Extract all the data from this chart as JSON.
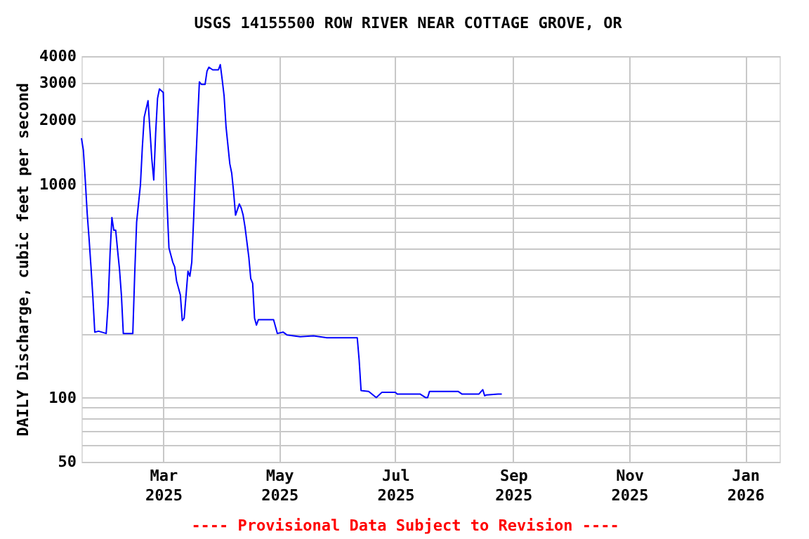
{
  "chart_data": {
    "type": "line",
    "title": "USGS 14155500 ROW RIVER NEAR COTTAGE GROVE, OR",
    "ylabel": "DAILY Discharge, cubic feet per second",
    "annotations": [
      "---- Provisional Data Subject to Revision ----"
    ],
    "x": [
      "2025-01-17",
      "2025-01-18",
      "2025-01-19",
      "2025-01-20",
      "2025-01-21",
      "2025-01-22",
      "2025-01-23",
      "2025-01-24",
      "2025-01-26",
      "2025-01-30",
      "2025-01-31",
      "2025-02-01",
      "2025-02-02",
      "2025-02-03",
      "2025-02-04",
      "2025-02-05",
      "2025-02-06",
      "2025-02-07",
      "2025-02-08",
      "2025-02-13",
      "2025-02-14",
      "2025-02-15",
      "2025-02-17",
      "2025-02-18",
      "2025-02-19",
      "2025-02-21",
      "2025-02-23",
      "2025-02-24",
      "2025-02-25",
      "2025-02-26",
      "2025-02-27",
      "2025-03-01",
      "2025-03-02",
      "2025-03-03",
      "2025-03-04",
      "2025-03-06",
      "2025-03-07",
      "2025-03-08",
      "2025-03-10",
      "2025-03-11",
      "2025-03-12",
      "2025-03-13",
      "2025-03-14",
      "2025-03-15",
      "2025-03-16",
      "2025-03-17",
      "2025-03-18",
      "2025-03-19",
      "2025-03-20",
      "2025-03-21",
      "2025-03-23",
      "2025-03-24",
      "2025-03-25",
      "2025-03-27",
      "2025-03-30",
      "2025-03-31",
      "2025-04-01",
      "2025-04-02",
      "2025-04-03",
      "2025-04-05",
      "2025-04-06",
      "2025-04-07",
      "2025-04-08",
      "2025-04-10",
      "2025-04-11",
      "2025-04-12",
      "2025-04-13",
      "2025-04-15",
      "2025-04-16",
      "2025-04-17",
      "2025-04-18",
      "2025-04-19",
      "2025-04-20",
      "2025-04-28",
      "2025-04-30",
      "2025-05-03",
      "2025-05-05",
      "2025-05-12",
      "2025-05-19",
      "2025-05-26",
      "2025-06-11",
      "2025-06-12",
      "2025-06-13",
      "2025-06-17",
      "2025-06-21",
      "2025-06-24",
      "2025-07-01",
      "2025-07-02",
      "2025-07-14",
      "2025-07-17",
      "2025-07-18",
      "2025-07-19",
      "2025-08-03",
      "2025-08-05",
      "2025-08-14",
      "2025-08-16",
      "2025-08-17",
      "2025-08-18",
      "2025-08-24",
      "2025-08-26"
    ],
    "series": [
      {
        "color": "#0000ff",
        "values": [
          1650,
          1450,
          1050,
          735,
          557,
          411,
          296,
          203,
          205,
          200,
          274,
          467,
          700,
          610,
          610,
          491,
          400,
          303,
          200,
          200,
          381,
          665,
          995,
          1490,
          2070,
          2470,
          1315,
          1050,
          1735,
          2535,
          2805,
          2700,
          1450,
          813,
          504,
          432,
          411,
          353,
          303,
          230,
          236,
          303,
          392,
          371,
          432,
          699,
          1188,
          1920,
          3030,
          2950,
          2950,
          3400,
          3550,
          3450,
          3450,
          3650,
          3100,
          2600,
          1870,
          1250,
          1130,
          922,
          718,
          810,
          775,
          718,
          631,
          455,
          362,
          344,
          236,
          219,
          232,
          232,
          200,
          203,
          197,
          193,
          195,
          191,
          191,
          150,
          108,
          107,
          100,
          106,
          106,
          104,
          104,
          100,
          100,
          107,
          107,
          104,
          104,
          109,
          102,
          103,
          104,
          104
        ]
      }
    ],
    "xlim": [
      "2025-01-17",
      "2026-01-19"
    ],
    "xticks": [
      {
        "value": "2025-03-01",
        "label": "Mar 2025"
      },
      {
        "value": "2025-05-01",
        "label": "May 2025"
      },
      {
        "value": "2025-07-01",
        "label": "Jul 2025"
      },
      {
        "value": "2025-09-01",
        "label": "Sep 2025"
      },
      {
        "value": "2025-11-01",
        "label": "Nov 2025"
      },
      {
        "value": "2026-01-01",
        "label": "Jan 2026"
      }
    ],
    "ylim": [
      50,
      4000
    ],
    "yticks": [
      50,
      {
        "value": 60,
        "label": null
      },
      {
        "value": 70,
        "label": null
      },
      {
        "value": 80,
        "label": null
      },
      {
        "value": 90,
        "label": null
      },
      100,
      {
        "value": 200,
        "label": null
      },
      {
        "value": 300,
        "label": null
      },
      {
        "value": 400,
        "label": null
      },
      {
        "value": 500,
        "label": null
      },
      {
        "value": 600,
        "label": null
      },
      {
        "value": 700,
        "label": null
      },
      {
        "value": 800,
        "label": null
      },
      {
        "value": 900,
        "label": null
      },
      1000,
      2000,
      3000,
      4000
    ],
    "log": "y",
    "grid": true,
    "line_style": "solid",
    "marker": "none"
  }
}
